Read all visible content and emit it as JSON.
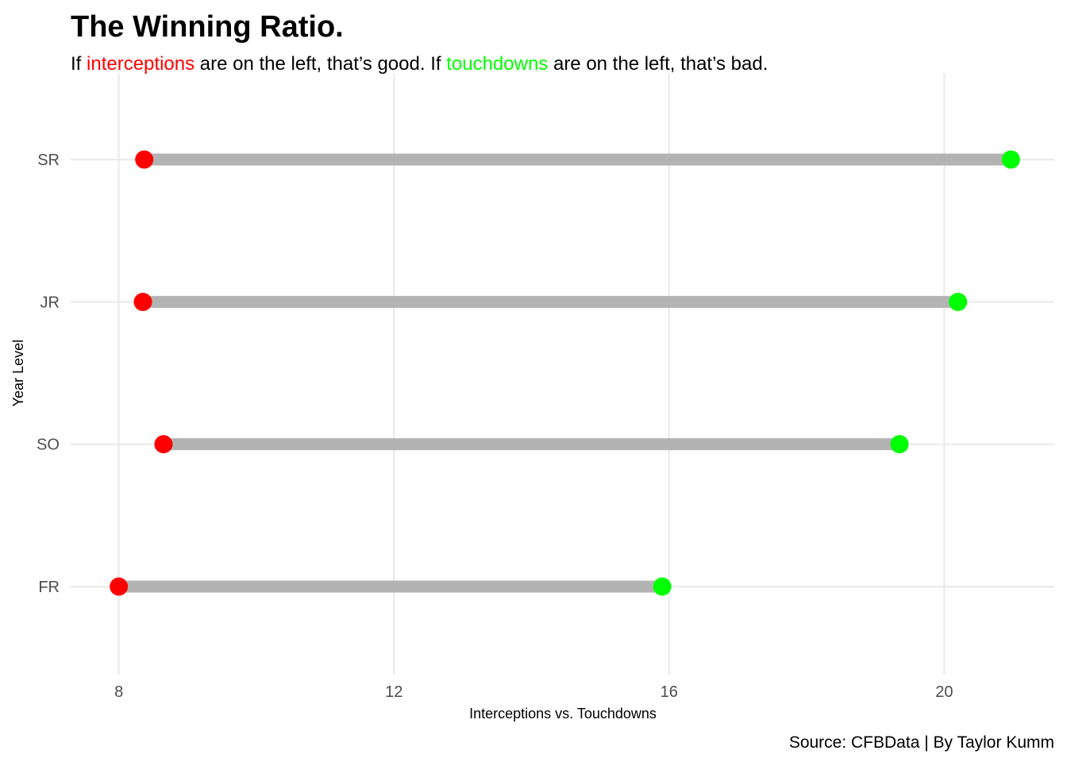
{
  "chart_data": {
    "type": "dumbbell",
    "title": "The Winning Ratio.",
    "subtitle_parts": [
      {
        "text": "If ",
        "color": "#000000"
      },
      {
        "text": "interceptions",
        "color": "#ff0000"
      },
      {
        "text": " are on the left, that’s good. If ",
        "color": "#000000"
      },
      {
        "text": "touchdowns",
        "color": "#00ff00"
      },
      {
        "text": " are on the left, that’s bad.",
        "color": "#000000"
      }
    ],
    "xlabel": "Interceptions vs. Touchdowns",
    "ylabel": "Year Level",
    "caption": "Source: CFBData | By Taylor Kumm",
    "xlim": [
      7.3,
      21.6
    ],
    "xticks": [
      8,
      12,
      16,
      20
    ],
    "categories": [
      "FR",
      "SO",
      "JR",
      "SR"
    ],
    "series": [
      {
        "name": "interceptions",
        "color": "#ff0000",
        "values": [
          8.0,
          8.65,
          8.35,
          8.37
        ]
      },
      {
        "name": "touchdowns",
        "color": "#00ff00",
        "values": [
          15.9,
          19.35,
          20.2,
          20.97
        ]
      }
    ],
    "segment_color": "#b3b3b3",
    "grid": true,
    "legend": "none"
  }
}
